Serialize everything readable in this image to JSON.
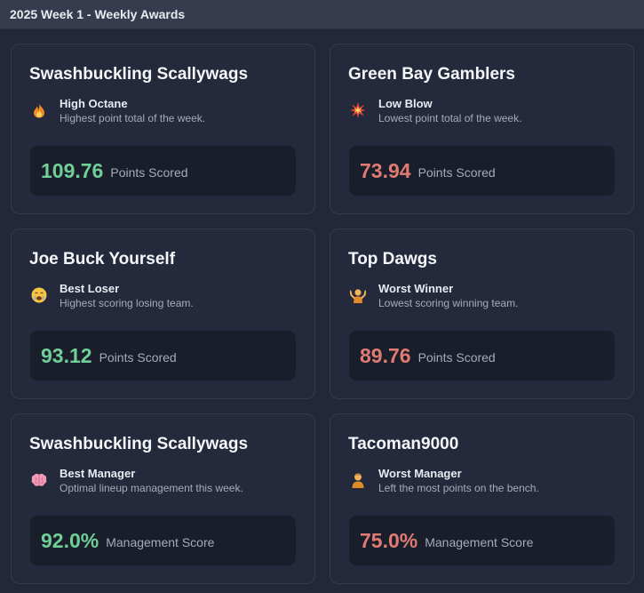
{
  "window": {
    "title": "2025 Week 1 - Weekly Awards"
  },
  "colors": {
    "good": "#6fcf97",
    "bad": "#e07b73",
    "card_bg": "#242a3b",
    "score_bg": "#1a1e2b"
  },
  "awards": [
    {
      "team": "Swashbuckling Scallywags",
      "icon": "fire-icon",
      "title": "High Octane",
      "description": "Highest point total of the week.",
      "value": "109.76",
      "label": "Points Scored",
      "sentiment": "good"
    },
    {
      "team": "Green Bay Gamblers",
      "icon": "explosion-icon",
      "title": "Low Blow",
      "description": "Lowest point total of the week.",
      "value": "73.94",
      "label": "Points Scored",
      "sentiment": "bad"
    },
    {
      "team": "Joe Buck Yourself",
      "icon": "crying-face-icon",
      "title": "Best Loser",
      "description": "Highest scoring losing team.",
      "value": "93.12",
      "label": "Points Scored",
      "sentiment": "good"
    },
    {
      "team": "Top Dawgs",
      "icon": "shrug-icon",
      "title": "Worst Winner",
      "description": "Lowest scoring winning team.",
      "value": "89.76",
      "label": "Points Scored",
      "sentiment": "bad"
    },
    {
      "team": "Swashbuckling Scallywags",
      "icon": "brain-icon",
      "title": "Best Manager",
      "description": "Optimal lineup management this week.",
      "value": "92.0%",
      "label": "Management Score",
      "sentiment": "good"
    },
    {
      "team": "Tacoman9000",
      "icon": "person-icon",
      "title": "Worst Manager",
      "description": "Left the most points on the bench.",
      "value": "75.0%",
      "label": "Management Score",
      "sentiment": "bad"
    }
  ]
}
